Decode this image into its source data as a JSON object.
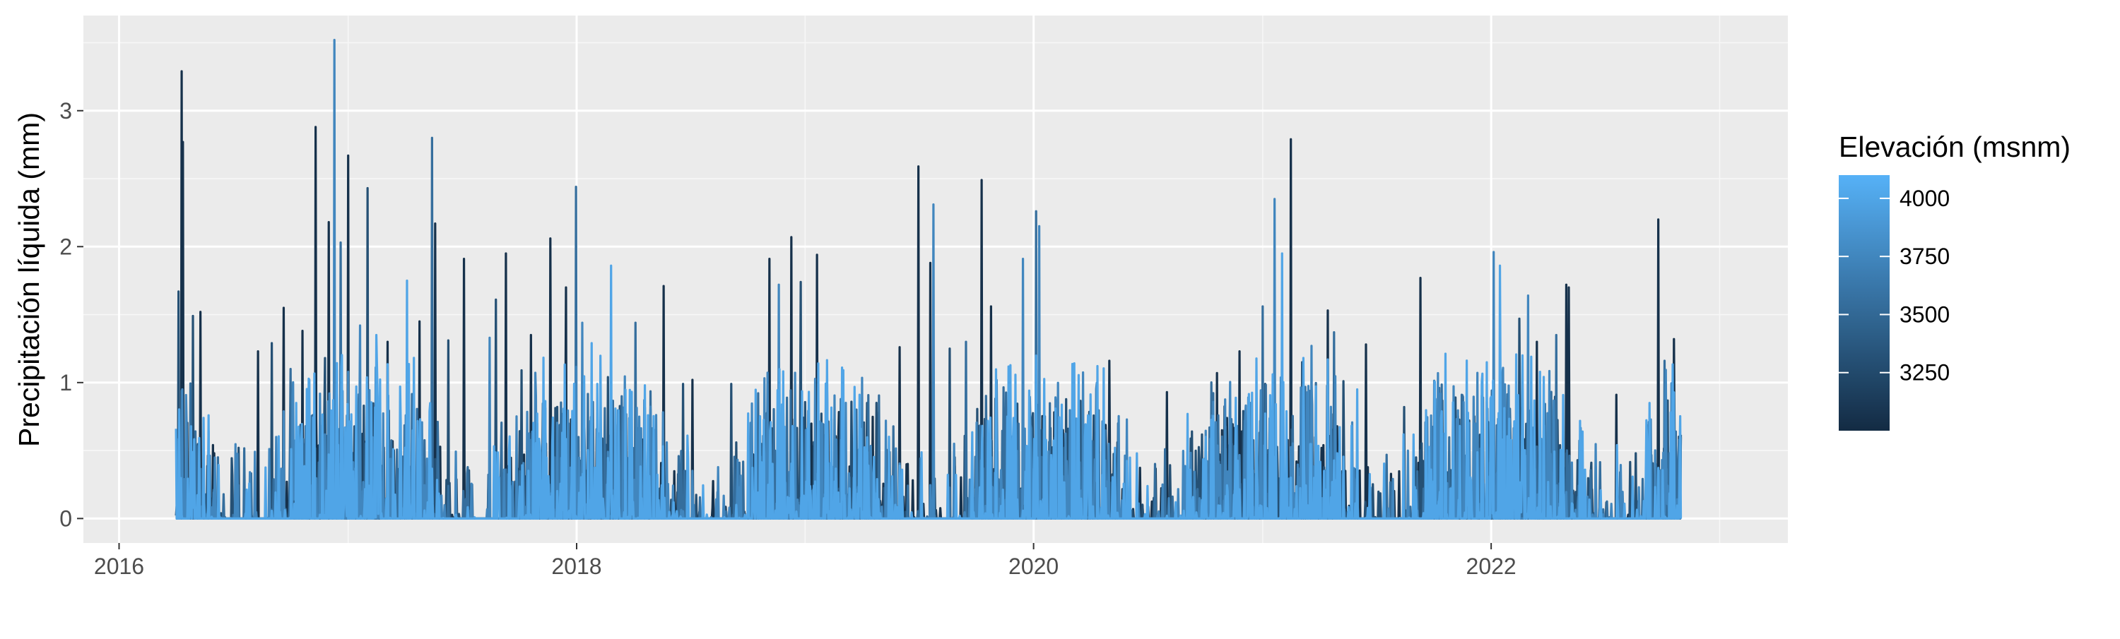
{
  "chart_data": {
    "type": "line",
    "title": "",
    "xlabel": "",
    "ylabel": "Precipitación líquida (mm)",
    "x_axis_type": "date",
    "xlim": [
      "2015-11-05",
      "2023-04-20"
    ],
    "ylim": [
      -0.18,
      3.7
    ],
    "x_ticks": [
      {
        "value": "2016-01-01",
        "label": "2016"
      },
      {
        "value": "2018-01-01",
        "label": "2018"
      },
      {
        "value": "2020-01-01",
        "label": "2020"
      },
      {
        "value": "2022-01-01",
        "label": "2022"
      }
    ],
    "x_minor_ticks": [
      "2017-01-01",
      "2019-01-01",
      "2021-01-01",
      "2023-01-01"
    ],
    "y_ticks": [
      0,
      1,
      2,
      3
    ],
    "y_minor_ticks": [
      0.5,
      1.5,
      2.5,
      3.5
    ],
    "grid": true,
    "data_range": [
      "2016-04-01",
      "2022-10-31"
    ],
    "legend": {
      "title": "Elevación (msnm)",
      "type": "colorbar",
      "position": "right",
      "min": 3000,
      "max": 4100,
      "ticks": [
        3250,
        3500,
        3750,
        4000
      ],
      "color_low": "#132b43",
      "color_high": "#56b1f7"
    },
    "series": [
      {
        "elevation": 3050,
        "peaks": [
          [
            "2016-04-10",
            3.29
          ],
          [
            "2016-04-12",
            2.77
          ],
          [
            "2016-05-10",
            1.52
          ],
          [
            "2016-06-01",
            0.48
          ],
          [
            "2016-08-10",
            1.23
          ],
          [
            "2016-09-20",
            1.55
          ],
          [
            "2016-10-20",
            1.38
          ],
          [
            "2016-11-10",
            2.88
          ],
          [
            "2016-12-01",
            2.18
          ],
          [
            "2017-01-01",
            2.67
          ],
          [
            "2017-03-05",
            1.3
          ],
          [
            "2017-04-25",
            1.45
          ],
          [
            "2017-05-20",
            2.17
          ],
          [
            "2017-07-05",
            1.91
          ],
          [
            "2017-09-10",
            1.95
          ],
          [
            "2017-10-20",
            1.35
          ],
          [
            "2017-11-20",
            2.06
          ],
          [
            "2017-12-15",
            1.7
          ],
          [
            "2018-05-20",
            1.71
          ],
          [
            "2018-07-05",
            1.02
          ],
          [
            "2018-11-05",
            1.91
          ],
          [
            "2018-12-10",
            2.07
          ],
          [
            "2019-01-20",
            1.94
          ],
          [
            "2019-06-01",
            1.26
          ],
          [
            "2019-07-01",
            2.59
          ],
          [
            "2019-07-20",
            1.88
          ],
          [
            "2019-10-10",
            2.49
          ],
          [
            "2019-10-25",
            1.56
          ],
          [
            "2020-05-01",
            1.16
          ],
          [
            "2020-08-01",
            0.93
          ],
          [
            "2020-10-20",
            1.07
          ],
          [
            "2020-11-25",
            1.23
          ],
          [
            "2021-02-15",
            2.79
          ],
          [
            "2021-04-15",
            1.53
          ],
          [
            "2021-06-15",
            1.28
          ],
          [
            "2021-09-10",
            1.77
          ],
          [
            "2022-03-15",
            1.3
          ],
          [
            "2022-05-01",
            1.72
          ],
          [
            "2022-05-05",
            1.7
          ],
          [
            "2022-07-20",
            0.91
          ],
          [
            "2022-09-25",
            2.2
          ],
          [
            "2022-10-20",
            1.32
          ]
        ]
      },
      {
        "elevation": 3300,
        "peaks": [
          [
            "2016-04-05",
            1.67
          ],
          [
            "2016-04-28",
            1.49
          ],
          [
            "2016-07-10",
            0.52
          ],
          [
            "2016-09-01",
            1.29
          ],
          [
            "2016-11-25",
            1.18
          ],
          [
            "2017-02-01",
            2.43
          ],
          [
            "2017-06-10",
            1.31
          ],
          [
            "2017-08-25",
            1.61
          ],
          [
            "2017-10-05",
            1.09
          ],
          [
            "2018-02-20",
            1.04
          ],
          [
            "2018-06-20",
            0.99
          ],
          [
            "2018-09-05",
            0.99
          ],
          [
            "2018-12-25",
            1.74
          ],
          [
            "2019-04-10",
            0.85
          ],
          [
            "2019-08-20",
            1.25
          ],
          [
            "2019-12-05",
            0.77
          ],
          [
            "2020-04-01",
            0.62
          ],
          [
            "2020-09-10",
            0.64
          ],
          [
            "2021-01-05",
            0.99
          ],
          [
            "2021-03-05",
            1.15
          ],
          [
            "2021-05-10",
            1.01
          ],
          [
            "2021-08-15",
            0.82
          ],
          [
            "2021-11-05",
            0.89
          ],
          [
            "2022-02-15",
            1.47
          ],
          [
            "2022-06-10",
            0.41
          ],
          [
            "2022-08-20",
            0.48
          ]
        ]
      },
      {
        "elevation": 3550,
        "peaks": [
          [
            "2016-10-01",
            1.1
          ],
          [
            "2016-12-20",
            2.03
          ],
          [
            "2017-05-15",
            2.8
          ],
          [
            "2017-12-31",
            2.44
          ],
          [
            "2018-04-05",
            1.44
          ],
          [
            "2019-02-05",
            0.98
          ],
          [
            "2019-09-15",
            1.3
          ],
          [
            "2020-01-05",
            2.26
          ],
          [
            "2021-01-01",
            1.56
          ],
          [
            "2021-04-25",
            1.37
          ],
          [
            "2021-10-10",
            0.96
          ],
          [
            "2022-04-15",
            1.35
          ],
          [
            "2022-10-05",
            1.16
          ]
        ]
      },
      {
        "elevation": 3750,
        "peaks": [
          [
            "2016-12-10",
            3.52
          ],
          [
            "2017-01-20",
            1.42
          ],
          [
            "2017-08-15",
            1.33
          ],
          [
            "2018-01-10",
            1.44
          ],
          [
            "2018-11-20",
            1.72
          ],
          [
            "2019-07-25",
            2.31
          ],
          [
            "2019-12-15",
            1.91
          ],
          [
            "2020-01-10",
            2.15
          ],
          [
            "2021-01-20",
            2.35
          ],
          [
            "2021-03-20",
            1.27
          ],
          [
            "2022-01-05",
            1.96
          ],
          [
            "2022-03-01",
            1.64
          ]
        ]
      },
      {
        "elevation": 4000,
        "peaks": [
          [
            "2016-05-15",
            0.74
          ],
          [
            "2016-10-10",
            0.85
          ],
          [
            "2017-02-15",
            1.35
          ],
          [
            "2017-04-05",
            1.75
          ],
          [
            "2018-01-25",
            1.29
          ],
          [
            "2018-02-25",
            1.86
          ],
          [
            "2018-04-20",
            0.98
          ],
          [
            "2019-03-01",
            1.11
          ],
          [
            "2019-11-20",
            0.75
          ],
          [
            "2020-04-20",
            0.32
          ],
          [
            "2021-02-01",
            1.95
          ],
          [
            "2021-06-01",
            0.95
          ],
          [
            "2022-01-15",
            1.86
          ],
          [
            "2022-02-20",
            1.2
          ]
        ]
      }
    ]
  }
}
